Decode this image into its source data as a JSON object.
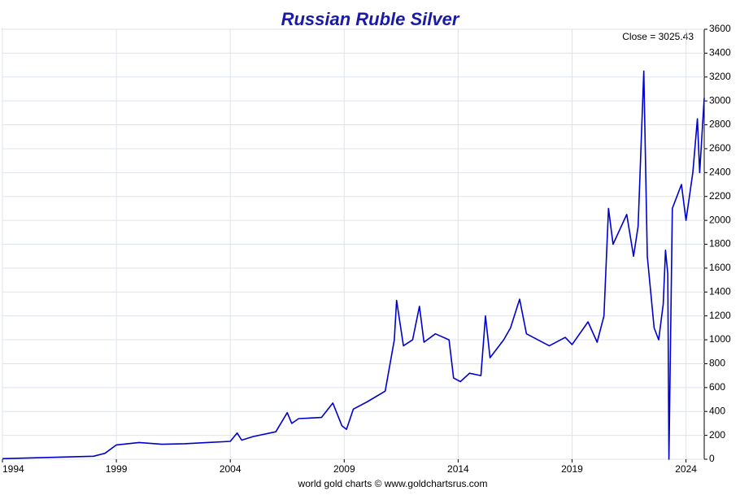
{
  "chart_data": {
    "type": "line",
    "title": "Russian Ruble Silver",
    "annotation": "Close = 3025.43",
    "footer": "world gold charts © www.goldchartsrus.com",
    "x": [
      1994,
      1996,
      1998,
      1998.5,
      1999,
      2000,
      2001,
      2002,
      2003,
      2004,
      2004.3,
      2004.5,
      2005,
      2006,
      2006.5,
      2006.7,
      2007,
      2008,
      2008.5,
      2008.9,
      2009.1,
      2009.4,
      2010,
      2010.8,
      2011.2,
      2011.3,
      2011.6,
      2012,
      2012.3,
      2012.5,
      2013,
      2013.6,
      2013.8,
      2014.1,
      2014.5,
      2015,
      2015.2,
      2015.4,
      2016,
      2016.3,
      2016.7,
      2017,
      2018,
      2018.7,
      2019,
      2019.7,
      2020.1,
      2020.4,
      2020.6,
      2020.8,
      2021.4,
      2021.7,
      2021.9,
      2022.15,
      2022.3,
      2022.6,
      2022.8,
      2023.0,
      2023.1,
      2023.2,
      2023.25,
      2023.4,
      2023.8,
      2024.0,
      2024.3,
      2024.5,
      2024.6,
      2024.8
    ],
    "series": [
      {
        "name": "Russian Ruble Silver",
        "color": "#0000cc",
        "values": [
          5,
          15,
          25,
          50,
          120,
          140,
          125,
          130,
          140,
          150,
          220,
          160,
          190,
          230,
          390,
          300,
          340,
          350,
          470,
          280,
          250,
          420,
          480,
          570,
          1000,
          1330,
          950,
          1000,
          1280,
          980,
          1050,
          1000,
          680,
          650,
          720,
          700,
          1200,
          850,
          1000,
          1100,
          1340,
          1050,
          950,
          1020,
          960,
          1150,
          980,
          1200,
          2100,
          1800,
          2050,
          1700,
          1950,
          3250,
          1700,
          1100,
          1000,
          1300,
          1750,
          1550,
          0,
          2100,
          2300,
          2000,
          2400,
          2850,
          2400,
          3025
        ]
      }
    ],
    "xlim": [
      1994,
      2024.8
    ],
    "xticks": [
      1994,
      1999,
      2004,
      2009,
      2014,
      2019,
      2024
    ],
    "ylim": [
      0,
      3600
    ],
    "yticks": [
      0,
      200,
      400,
      600,
      800,
      1000,
      1200,
      1400,
      1600,
      1800,
      2000,
      2200,
      2400,
      2600,
      2800,
      3000,
      3200,
      3400,
      3600
    ],
    "grid": true
  }
}
